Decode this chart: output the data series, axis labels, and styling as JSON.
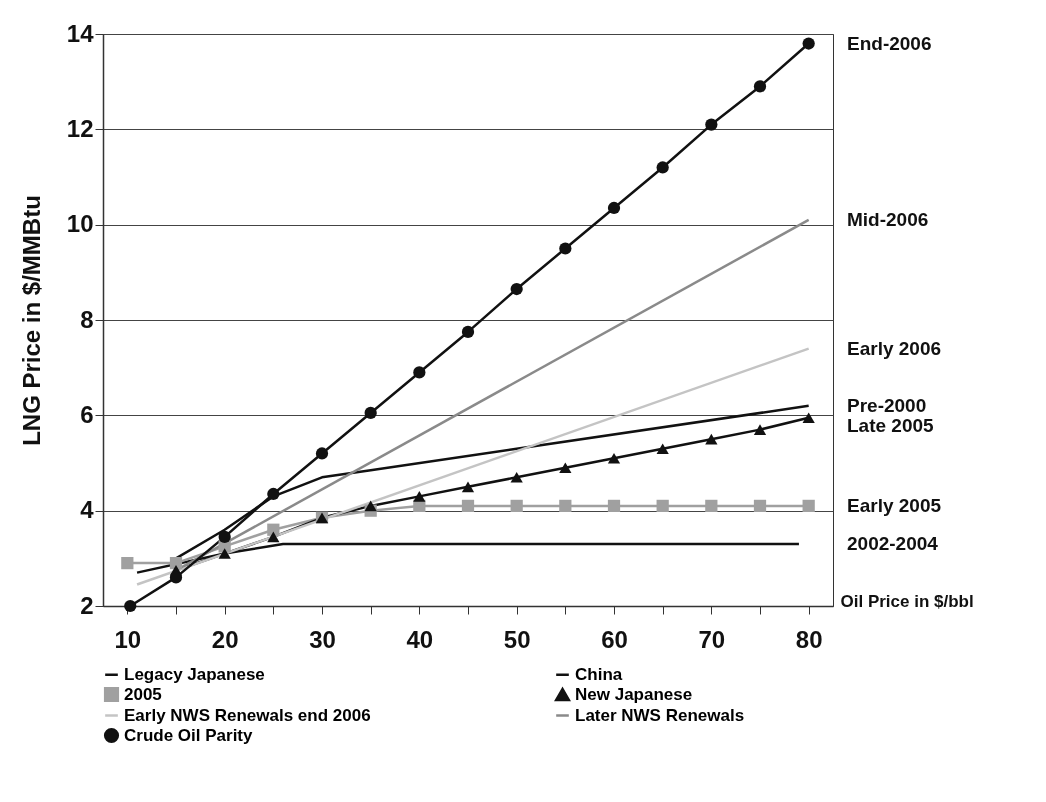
{
  "chart_data": {
    "type": "line",
    "xlabel": "Oil Price in $/bbl",
    "ylabel": "LNG Price in $/MMBtu",
    "xlim": [
      7.5,
      82.5
    ],
    "ylim": [
      2,
      14
    ],
    "xticks": [
      10,
      {
        "value": 15,
        "label": null
      },
      20,
      {
        "value": 25,
        "label": null
      },
      30,
      {
        "value": 35,
        "label": null
      },
      40,
      {
        "value": 45,
        "label": null
      },
      50,
      {
        "value": 55,
        "label": null
      },
      60,
      {
        "value": 65,
        "label": null
      },
      70,
      {
        "value": 75,
        "label": null
      },
      80
    ],
    "yticks": [
      2,
      4,
      6,
      8,
      10,
      12,
      14
    ],
    "grid": "y",
    "legend": "bottom",
    "series": [
      {
        "name": "Legacy Japanese",
        "color": "#111111",
        "marker": "none",
        "x": [
          15,
          20,
          25,
          30,
          35,
          50,
          80
        ],
        "values": [
          3.0,
          3.6,
          4.3,
          4.7,
          4.85,
          5.3,
          6.2
        ]
      },
      {
        "name": "China",
        "color": "#111111",
        "marker": "none",
        "x": [
          11,
          20,
          26,
          79
        ],
        "values": [
          2.7,
          3.1,
          3.3,
          3.3
        ]
      },
      {
        "name": "2005",
        "color": "#a0a0a0",
        "marker": "square",
        "x": [
          10,
          15,
          20,
          25,
          30,
          35,
          40,
          45,
          50,
          55,
          60,
          65,
          70,
          75,
          80
        ],
        "values": [
          2.9,
          2.9,
          3.25,
          3.6,
          3.85,
          4.0,
          4.1,
          4.1,
          4.1,
          4.1,
          4.1,
          4.1,
          4.1,
          4.1,
          4.1
        ]
      },
      {
        "name": "New Japanese",
        "color": "#111111",
        "marker": "triangle",
        "x": [
          15,
          20,
          25,
          30,
          35,
          40,
          45,
          50,
          55,
          60,
          65,
          70,
          75,
          80
        ],
        "values": [
          2.75,
          3.1,
          3.45,
          3.85,
          4.1,
          4.3,
          4.5,
          4.7,
          4.9,
          5.1,
          5.3,
          5.5,
          5.7,
          5.95
        ]
      },
      {
        "name": "Early NWS Renewals end 2006",
        "color": "#c4c4c4",
        "marker": "none",
        "x": [
          11,
          80
        ],
        "values": [
          2.45,
          7.4
        ]
      },
      {
        "name": "Later NWS Renewals",
        "color": "#8a8a8a",
        "marker": "none",
        "x": [
          15,
          80
        ],
        "values": [
          2.75,
          10.1
        ]
      },
      {
        "name": "Crude Oil Parity",
        "color": "#111111",
        "marker": "circle",
        "x": [
          10.3,
          15,
          20,
          25,
          30,
          35,
          40,
          45,
          50,
          55,
          60,
          65,
          70,
          75,
          80
        ],
        "values": [
          2.0,
          2.6,
          3.45,
          4.35,
          5.2,
          6.05,
          6.9,
          7.75,
          8.65,
          9.5,
          10.35,
          11.2,
          12.1,
          12.9,
          13.8
        ]
      }
    ],
    "annotations": [
      "End-2006",
      "Mid-2006",
      "Early 2006",
      "Pre-2000",
      "Late 2005",
      "Early 2005",
      "2002-2004"
    ]
  }
}
